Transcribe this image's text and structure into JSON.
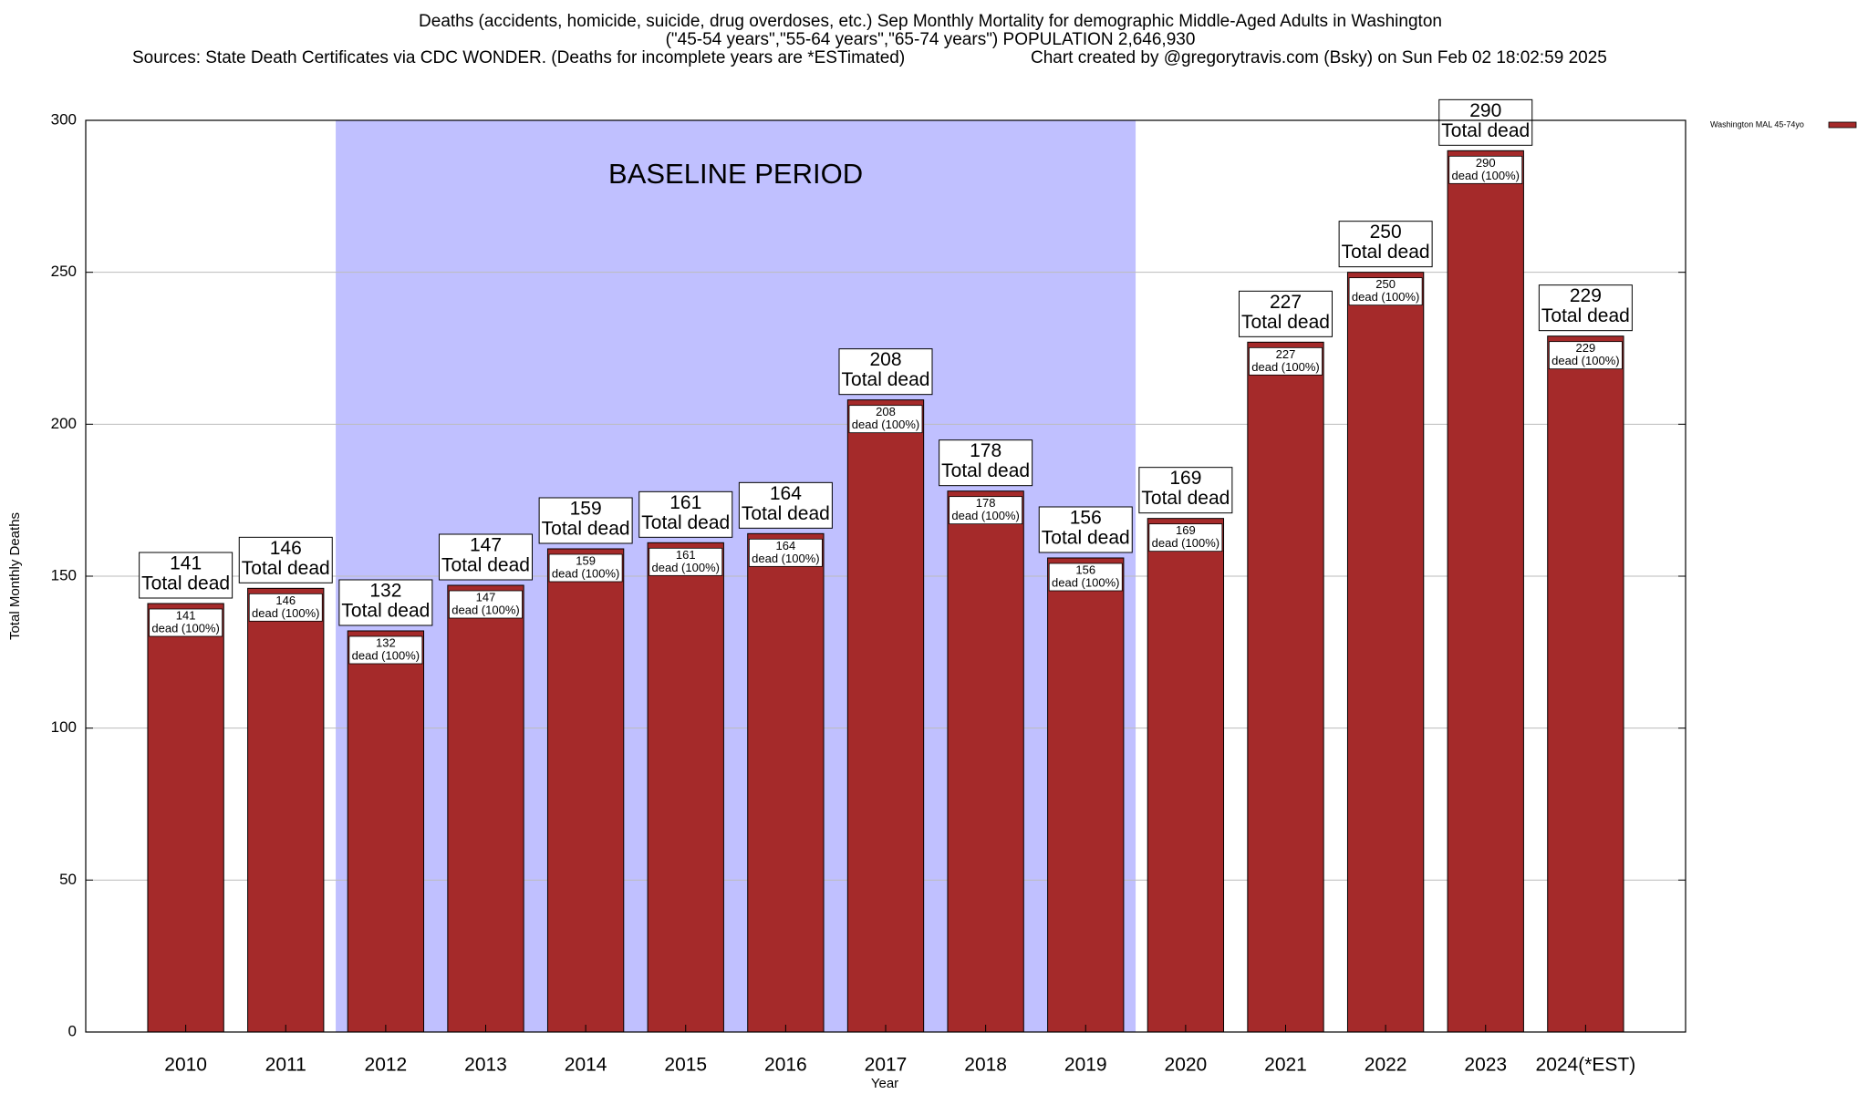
{
  "chart_data": {
    "type": "bar",
    "title": "Deaths (accidents, homicide, suicide, drug overdoses, etc.) Sep Monthly Mortality for demographic Middle-Aged Adults in Washington",
    "subtitle": "(\"45-54 years\",\"55-64 years\",\"65-74 years\") POPULATION 2,646,930",
    "source": "Sources: State Death Certificates via CDC WONDER. (Deaths for incomplete years are *ESTimated)",
    "credit": "Chart created by @gregorytravis.com (Bsky) on Sun Feb 02 18:02:59 2025",
    "x_label": "Year",
    "y_label": "Total Monthly Deaths",
    "categories": [
      "2010",
      "2011",
      "2012",
      "2013",
      "2014",
      "2015",
      "2016",
      "2017",
      "2018",
      "2019",
      "2020",
      "2021",
      "2022",
      "2023",
      "2024(*EST)"
    ],
    "series": [
      {
        "name": "Washington MAL 45-74yo",
        "color": "#a52a2a",
        "values": [
          141,
          146,
          132,
          147,
          159,
          161,
          164,
          208,
          178,
          156,
          169,
          227,
          250,
          290,
          229
        ]
      }
    ],
    "outer_label_text": "Total dead",
    "inner_label_text": "dead (100%)",
    "baseline": {
      "label": "BASELINE PERIOD",
      "start": "2012",
      "end": "2019",
      "color": "#c0c0ff"
    },
    "ylim": [
      0,
      300
    ],
    "yticks": [
      0,
      50,
      100,
      150,
      200,
      250,
      300
    ],
    "grid": true,
    "legend": "outside-top-right"
  }
}
